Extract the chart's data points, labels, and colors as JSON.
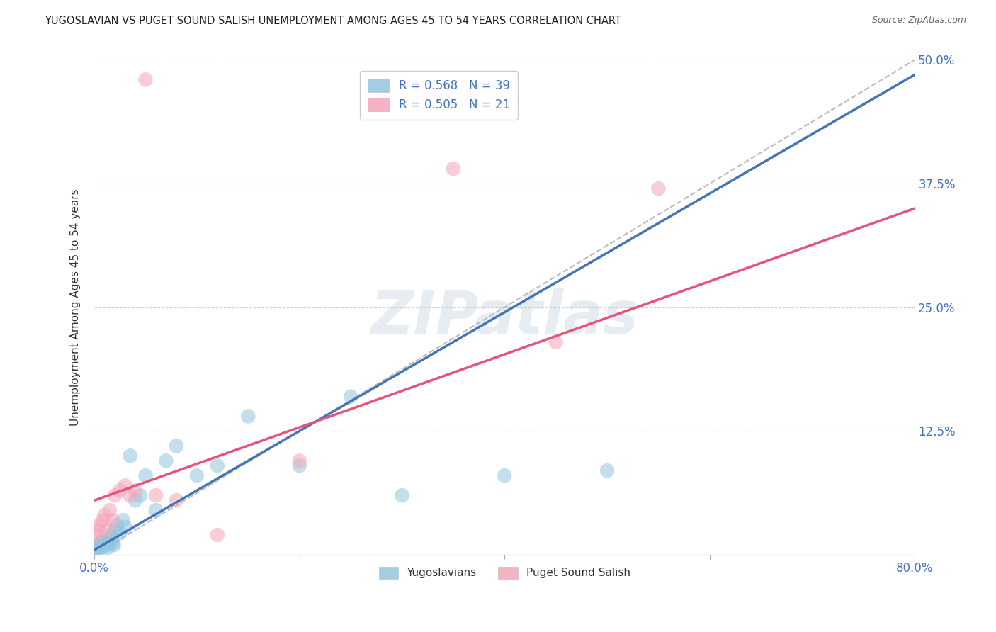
{
  "title": "YUGOSLAVIAN VS PUGET SOUND SALISH UNEMPLOYMENT AMONG AGES 45 TO 54 YEARS CORRELATION CHART",
  "source": "Source: ZipAtlas.com",
  "xlabel_label": "Yugoslavians",
  "ylabel_label": "Puget Sound Salish",
  "ylabel": "Unemployment Among Ages 45 to 54 years",
  "xmin": 0.0,
  "xmax": 0.8,
  "ymin": 0.0,
  "ymax": 0.5,
  "xticks": [
    0.0,
    0.2,
    0.4,
    0.6,
    0.8
  ],
  "xticklabels_left": "0.0%",
  "xticklabels_right": "80.0%",
  "yticks": [
    0.0,
    0.125,
    0.25,
    0.375,
    0.5
  ],
  "yticklabels": [
    "",
    "12.5%",
    "25.0%",
    "37.5%",
    "50.0%"
  ],
  "legend_r1": "R = 0.568",
  "legend_n1": "N = 39",
  "legend_r2": "R = 0.505",
  "legend_n2": "N = 21",
  "blue_color": "#92c5de",
  "pink_color": "#f4a5b8",
  "blue_line_color": "#4575b4",
  "pink_line_color": "#e8537a",
  "dashed_line_color": "#bbbbbb",
  "watermark_text": "ZIPatlas",
  "blue_scatter_x": [
    0.001,
    0.002,
    0.003,
    0.004,
    0.005,
    0.006,
    0.007,
    0.008,
    0.009,
    0.01,
    0.011,
    0.012,
    0.013,
    0.014,
    0.015,
    0.016,
    0.017,
    0.018,
    0.019,
    0.02,
    0.022,
    0.025,
    0.028,
    0.03,
    0.035,
    0.04,
    0.045,
    0.05,
    0.06,
    0.07,
    0.08,
    0.1,
    0.12,
    0.15,
    0.2,
    0.25,
    0.3,
    0.4,
    0.5
  ],
  "blue_scatter_y": [
    0.005,
    0.008,
    0.006,
    0.01,
    0.012,
    0.007,
    0.009,
    0.015,
    0.008,
    0.012,
    0.01,
    0.013,
    0.007,
    0.011,
    0.02,
    0.015,
    0.018,
    0.012,
    0.01,
    0.025,
    0.03,
    0.022,
    0.035,
    0.028,
    0.1,
    0.055,
    0.06,
    0.08,
    0.045,
    0.095,
    0.11,
    0.08,
    0.09,
    0.14,
    0.09,
    0.16,
    0.06,
    0.08,
    0.085
  ],
  "pink_scatter_x": [
    0.001,
    0.003,
    0.005,
    0.008,
    0.01,
    0.012,
    0.015,
    0.018,
    0.02,
    0.025,
    0.03,
    0.035,
    0.04,
    0.05,
    0.06,
    0.08,
    0.12,
    0.2,
    0.35,
    0.45,
    0.55
  ],
  "pink_scatter_y": [
    0.02,
    0.025,
    0.03,
    0.035,
    0.04,
    0.025,
    0.045,
    0.035,
    0.06,
    0.065,
    0.07,
    0.06,
    0.065,
    0.48,
    0.06,
    0.055,
    0.02,
    0.095,
    0.39,
    0.215,
    0.37
  ],
  "blue_line_x": [
    0.0,
    0.8
  ],
  "blue_line_y": [
    0.005,
    0.485
  ],
  "pink_line_x": [
    0.0,
    0.8
  ],
  "pink_line_y": [
    0.055,
    0.35
  ],
  "dashed_line_x": [
    0.0,
    0.8
  ],
  "dashed_line_y": [
    0.0,
    0.5
  ],
  "title_color": "#222222",
  "axis_tick_color": "#4472c4",
  "grid_color": "#cccccc",
  "source_color": "#666666"
}
